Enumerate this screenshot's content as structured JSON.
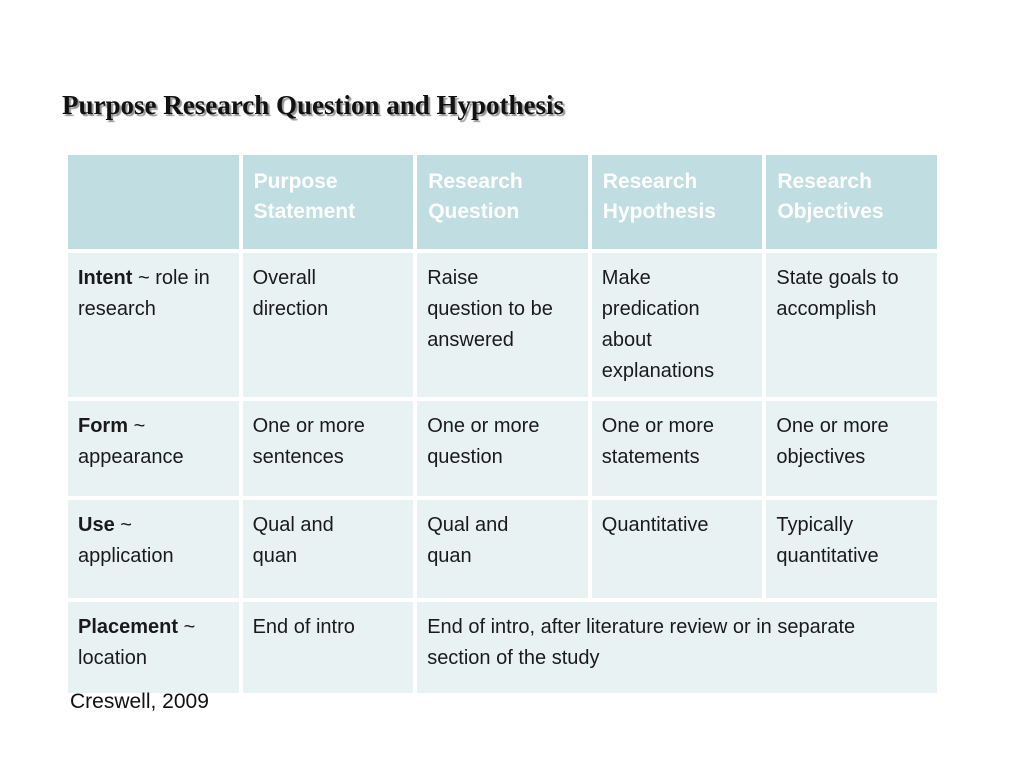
{
  "slide": {
    "title": "Purpose Research Question and Hypothesis",
    "citation": "Creswell, 2009"
  },
  "table": {
    "headers": [
      "",
      "Purpose Statement",
      "Research Question",
      "Research Hypothesis",
      "Research Objectives"
    ],
    "rows": [
      {
        "term": "Intent",
        "label_rest": "~ role in research",
        "cells": [
          "Overall direction",
          "Raise question to be answered",
          "Make predication about explanations",
          "State goals to accomplish"
        ]
      },
      {
        "term": "Form",
        "label_rest": "~ appearance",
        "cells": [
          "One or more sentences",
          "One or more question",
          "One or more statements",
          "One or more objectives"
        ]
      },
      {
        "term": "Use",
        "label_rest": "~ application",
        "cells": [
          "Qual and quan",
          "Qual and quan",
          "Quantitative",
          "Typically quantitative"
        ]
      },
      {
        "term": "Placement",
        "label_rest": "~ location",
        "cells": [
          "End of intro",
          "End of intro, after literature review or in separate section of the study"
        ]
      }
    ]
  },
  "colors": {
    "header_bg": "#c0dee1",
    "cell_bg": "#e9f2f3",
    "header_text": "#ffffff",
    "body_text": "#1a1a1a",
    "background": "#ffffff"
  }
}
